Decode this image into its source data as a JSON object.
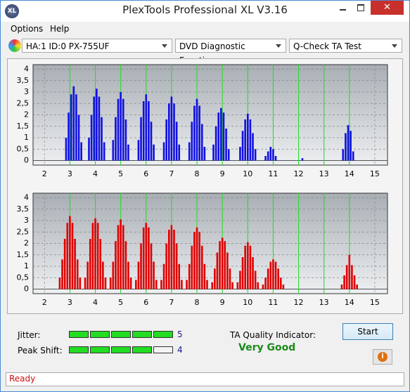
{
  "window": {
    "icon": "XL",
    "title": "PlexTools Professional XL V3.16"
  },
  "menu": [
    "Options",
    "Help"
  ],
  "toolbar": {
    "drive": "HA:1 ID:0  PX-755UF",
    "function": "DVD Diagnostic Functions",
    "test": "Q-Check TA Test"
  },
  "chart_data": [
    {
      "type": "bar",
      "color": "#1010e0",
      "x": [
        2.85,
        2.95,
        3.05,
        3.15,
        3.25,
        3.35,
        3.45,
        3.75,
        3.85,
        3.95,
        4.05,
        4.15,
        4.25,
        4.35,
        4.7,
        4.8,
        4.9,
        5.0,
        5.1,
        5.2,
        5.3,
        5.7,
        5.8,
        5.9,
        6.0,
        6.1,
        6.2,
        6.3,
        6.7,
        6.8,
        6.9,
        7.0,
        7.1,
        7.2,
        7.3,
        7.7,
        7.8,
        7.9,
        8.0,
        8.1,
        8.2,
        8.3,
        8.65,
        8.75,
        8.85,
        8.95,
        9.05,
        9.15,
        9.25,
        9.7,
        9.8,
        9.9,
        10.0,
        10.1,
        10.2,
        10.3,
        10.7,
        10.8,
        10.9,
        11.0,
        11.1,
        12.15,
        13.75,
        13.85,
        13.95,
        14.05,
        14.15
      ],
      "values": [
        1.0,
        2.1,
        2.9,
        3.25,
        2.9,
        2.0,
        0.8,
        1.0,
        2.0,
        2.8,
        3.15,
        2.8,
        1.9,
        0.8,
        0.9,
        1.9,
        2.7,
        3.0,
        2.7,
        1.8,
        0.7,
        0.9,
        1.9,
        2.6,
        2.9,
        2.6,
        1.7,
        0.7,
        0.8,
        1.8,
        2.5,
        2.8,
        2.5,
        1.7,
        0.7,
        0.8,
        1.7,
        2.4,
        2.7,
        2.4,
        1.6,
        0.6,
        0.7,
        1.5,
        2.1,
        2.3,
        2.1,
        1.4,
        0.5,
        0.6,
        1.3,
        1.8,
        2.05,
        1.8,
        1.2,
        0.5,
        0.2,
        0.4,
        0.6,
        0.5,
        0.2,
        0.1,
        0.5,
        1.2,
        1.55,
        1.3,
        0.4
      ],
      "xlim": [
        1.55,
        15.5
      ],
      "ylim": [
        -0.2,
        4.2
      ],
      "xticks": [
        2,
        3,
        4,
        5,
        6,
        7,
        8,
        9,
        10,
        11,
        12,
        13,
        14,
        15
      ],
      "yticks": [
        0,
        {
          "value": 0.5,
          "label": "0,5"
        },
        1,
        {
          "value": 1.5,
          "label": "1,5"
        },
        2,
        {
          "value": 2.5,
          "label": "2,5"
        },
        3,
        {
          "value": 3.5,
          "label": "3,5"
        },
        4
      ],
      "marker_lines": [
        3,
        4,
        5,
        6,
        7,
        8,
        9,
        10,
        11,
        12,
        13,
        14
      ],
      "marker_color": "#22dd22",
      "grid": true
    },
    {
      "type": "bar",
      "color": "#e00000",
      "x": [
        2.6,
        2.7,
        2.8,
        2.9,
        3.0,
        3.1,
        3.2,
        3.3,
        3.4,
        3.6,
        3.7,
        3.8,
        3.9,
        4.0,
        4.1,
        4.2,
        4.3,
        4.4,
        4.6,
        4.7,
        4.8,
        4.9,
        5.0,
        5.1,
        5.2,
        5.3,
        5.4,
        5.6,
        5.7,
        5.8,
        5.9,
        6.0,
        6.1,
        6.2,
        6.3,
        6.4,
        6.6,
        6.7,
        6.8,
        6.9,
        7.0,
        7.1,
        7.2,
        7.3,
        7.4,
        7.6,
        7.7,
        7.8,
        7.9,
        8.0,
        8.1,
        8.2,
        8.3,
        8.4,
        8.6,
        8.7,
        8.8,
        8.9,
        9.0,
        9.1,
        9.2,
        9.3,
        9.4,
        9.6,
        9.7,
        9.8,
        9.9,
        10.0,
        10.1,
        10.2,
        10.3,
        10.4,
        10.6,
        10.7,
        10.8,
        10.9,
        11.0,
        11.1,
        11.2,
        11.3,
        11.4,
        13.7,
        13.8,
        13.9,
        14.0,
        14.1,
        14.2,
        14.3
      ],
      "values": [
        0.5,
        1.3,
        2.2,
        2.9,
        3.2,
        2.9,
        2.2,
        1.3,
        0.5,
        0.5,
        1.2,
        2.2,
        2.9,
        3.1,
        2.9,
        2.2,
        1.2,
        0.5,
        0.5,
        1.2,
        2.1,
        2.8,
        3.05,
        2.8,
        2.1,
        1.2,
        0.5,
        0.4,
        1.2,
        2.0,
        2.7,
        2.9,
        2.7,
        2.0,
        1.2,
        0.4,
        0.4,
        1.1,
        2.0,
        2.6,
        2.8,
        2.6,
        2.0,
        1.1,
        0.4,
        0.4,
        1.1,
        1.9,
        2.5,
        2.7,
        2.5,
        1.9,
        1.1,
        0.4,
        0.3,
        0.9,
        1.6,
        2.1,
        2.25,
        2.1,
        1.6,
        0.9,
        0.3,
        0.3,
        0.8,
        1.4,
        1.9,
        2.05,
        1.9,
        1.4,
        0.8,
        0.3,
        0.2,
        0.5,
        0.9,
        1.2,
        1.3,
        1.2,
        0.9,
        0.5,
        0.2,
        0.2,
        0.6,
        1.05,
        1.5,
        1.05,
        0.6,
        0.2
      ],
      "xlim": [
        1.55,
        15.5
      ],
      "ylim": [
        -0.2,
        4.2
      ],
      "xticks": [
        2,
        3,
        4,
        5,
        6,
        7,
        8,
        9,
        10,
        11,
        12,
        13,
        14,
        15
      ],
      "yticks": [
        0,
        {
          "value": 0.5,
          "label": "0,5"
        },
        1,
        {
          "value": 1.5,
          "label": "1,5"
        },
        2,
        {
          "value": 2.5,
          "label": "2,5"
        },
        3,
        {
          "value": 3.5,
          "label": "3,5"
        },
        4
      ],
      "marker_lines": [
        3,
        4,
        5,
        6,
        7,
        8,
        9,
        10,
        11,
        12,
        13,
        14
      ],
      "marker_color": "#22dd22",
      "grid": true
    }
  ],
  "results": {
    "jitter": {
      "label": "Jitter:",
      "value": 5
    },
    "peak_shift": {
      "label": "Peak Shift:",
      "value": 4
    },
    "ta_label": "TA Quality Indicator:",
    "ta_value": "Very Good",
    "start": "Start",
    "info": "i"
  },
  "status": "Ready"
}
